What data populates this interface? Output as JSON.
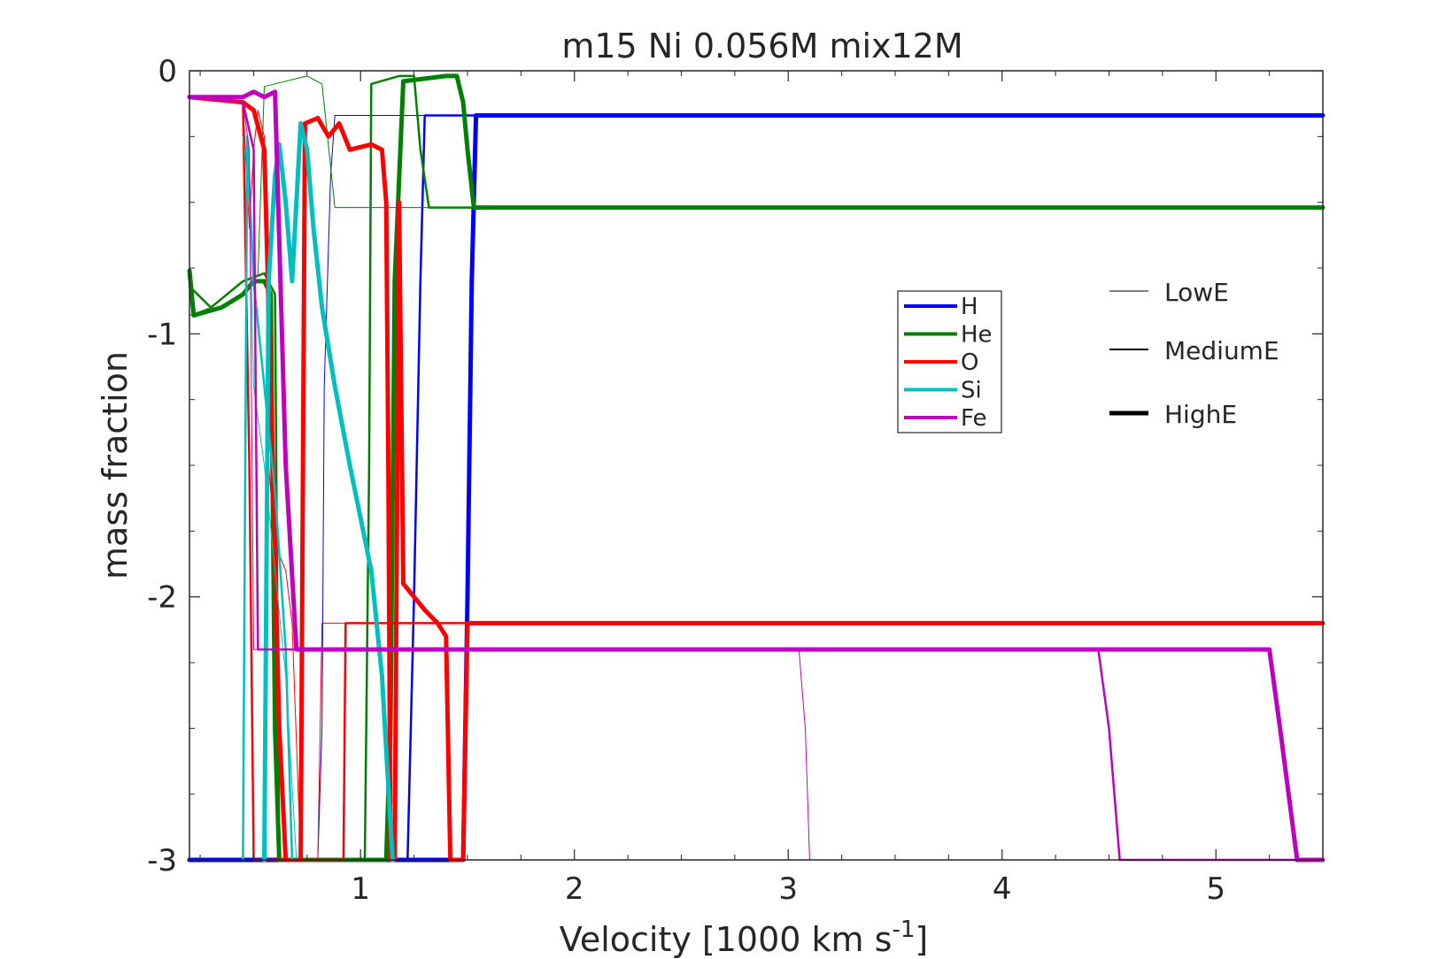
{
  "chart_data": {
    "type": "line",
    "title": "m15 Ni 0.056M mix12M",
    "xlabel_main": "Velocity [1000 km s",
    "xlabel_sup": "-1",
    "xlabel_close": "]",
    "ylabel": "mass fraction",
    "xlim": [
      0.2,
      5.5
    ],
    "ylim": [
      -3,
      0
    ],
    "xticks": [
      1,
      2,
      3,
      4,
      5
    ],
    "yticks": [
      -3,
      -2,
      -1,
      0
    ],
    "legend_elements": [
      {
        "name": "H",
        "color": "#0000ff"
      },
      {
        "name": "He",
        "color": "#008000"
      },
      {
        "name": "O",
        "color": "#ff0000"
      },
      {
        "name": "Si",
        "color": "#00bfbf"
      },
      {
        "name": "Fe",
        "color": "#bf00bf"
      }
    ],
    "legend_energy": [
      {
        "name": "LowE",
        "width": 1
      },
      {
        "name": "MediumE",
        "width": 2
      },
      {
        "name": "HighE",
        "width": 5
      }
    ],
    "series": [
      {
        "element": "H",
        "energy": "LowE",
        "color": "#0000ff",
        "width": 1,
        "points": [
          [
            0.2,
            -3
          ],
          [
            0.8,
            -3
          ],
          [
            0.82,
            -2.5
          ],
          [
            0.83,
            -1.2
          ],
          [
            0.86,
            -0.4
          ],
          [
            0.88,
            -0.17
          ],
          [
            5.5,
            -0.17
          ]
        ]
      },
      {
        "element": "H",
        "energy": "MediumE",
        "color": "#0000ff",
        "width": 2.5,
        "points": [
          [
            0.2,
            -3
          ],
          [
            1.22,
            -3
          ],
          [
            1.25,
            -2.0
          ],
          [
            1.28,
            -0.8
          ],
          [
            1.3,
            -0.17
          ],
          [
            5.5,
            -0.17
          ]
        ]
      },
      {
        "element": "H",
        "energy": "HighE",
        "color": "#0000ff",
        "width": 5,
        "points": [
          [
            0.2,
            -3
          ],
          [
            1.48,
            -3
          ],
          [
            1.5,
            -2.0
          ],
          [
            1.52,
            -0.8
          ],
          [
            1.54,
            -0.17
          ],
          [
            5.5,
            -0.17
          ]
        ]
      },
      {
        "element": "He",
        "energy": "LowE",
        "color": "#008000",
        "width": 1,
        "points": [
          [
            0.2,
            -0.93
          ],
          [
            0.3,
            -0.9
          ],
          [
            0.45,
            -0.8
          ],
          [
            0.52,
            -0.78
          ],
          [
            0.55,
            -0.06
          ],
          [
            0.75,
            -0.02
          ],
          [
            0.82,
            -0.05
          ],
          [
            0.88,
            -0.52
          ],
          [
            1.05,
            -0.52
          ],
          [
            5.5,
            -0.52
          ]
        ]
      },
      {
        "element": "He",
        "energy": "MediumE",
        "color": "#008000",
        "width": 2.5,
        "points": [
          [
            0.2,
            -0.82
          ],
          [
            0.3,
            -0.9
          ],
          [
            0.45,
            -0.8
          ],
          [
            0.55,
            -0.77
          ],
          [
            0.6,
            -0.85
          ],
          [
            0.62,
            -3
          ],
          [
            1.02,
            -3
          ],
          [
            1.04,
            -1.5
          ],
          [
            1.05,
            -0.05
          ],
          [
            1.18,
            -0.02
          ],
          [
            1.25,
            -0.02
          ],
          [
            1.28,
            -0.3
          ],
          [
            1.32,
            -0.52
          ],
          [
            5.5,
            -0.52
          ]
        ]
      },
      {
        "element": "He",
        "energy": "HighE",
        "color": "#008000",
        "width": 5,
        "points": [
          [
            0.2,
            -0.76
          ],
          [
            0.22,
            -0.93
          ],
          [
            0.35,
            -0.9
          ],
          [
            0.45,
            -0.85
          ],
          [
            0.5,
            -0.8
          ],
          [
            0.55,
            -0.8
          ],
          [
            0.58,
            -0.85
          ],
          [
            0.6,
            -2.5
          ],
          [
            0.62,
            -3
          ],
          [
            1.12,
            -3
          ],
          [
            1.14,
            -2.5
          ],
          [
            1.16,
            -0.8
          ],
          [
            1.2,
            -0.04
          ],
          [
            1.4,
            -0.02
          ],
          [
            1.45,
            -0.02
          ],
          [
            1.48,
            -0.12
          ],
          [
            1.5,
            -0.3
          ],
          [
            1.53,
            -0.52
          ],
          [
            5.5,
            -0.52
          ]
        ]
      },
      {
        "element": "O",
        "energy": "LowE",
        "color": "#ff0000",
        "width": 1,
        "points": [
          [
            0.2,
            -0.1
          ],
          [
            0.45,
            -0.12
          ],
          [
            0.48,
            -0.6
          ],
          [
            0.5,
            -0.3
          ],
          [
            0.52,
            -0.15
          ],
          [
            0.55,
            -0.25
          ],
          [
            0.57,
            -1.5
          ],
          [
            0.6,
            -1.8
          ],
          [
            0.65,
            -1.9
          ],
          [
            0.68,
            -2.1
          ],
          [
            0.72,
            -3
          ],
          [
            0.8,
            -3
          ],
          [
            0.82,
            -2.1
          ],
          [
            1.25,
            -2.1
          ],
          [
            5.5,
            -2.1
          ]
        ]
      },
      {
        "element": "O",
        "energy": "MediumE",
        "color": "#ff0000",
        "width": 2.5,
        "points": [
          [
            0.2,
            -0.1
          ],
          [
            0.45,
            -0.12
          ],
          [
            0.48,
            -1.5
          ],
          [
            0.5,
            -3
          ],
          [
            0.92,
            -3
          ],
          [
            0.93,
            -2.1
          ],
          [
            1.28,
            -2.1
          ],
          [
            5.5,
            -2.1
          ]
        ]
      },
      {
        "element": "O",
        "energy": "HighE",
        "color": "#ff0000",
        "width": 5,
        "points": [
          [
            0.2,
            -0.1
          ],
          [
            0.45,
            -0.12
          ],
          [
            0.5,
            -0.15
          ],
          [
            0.55,
            -0.3
          ],
          [
            0.58,
            -1.2
          ],
          [
            0.62,
            -2.5
          ],
          [
            0.65,
            -3
          ],
          [
            0.72,
            -3
          ],
          [
            0.74,
            -0.2
          ],
          [
            0.8,
            -0.18
          ],
          [
            0.85,
            -0.25
          ],
          [
            0.9,
            -0.2
          ],
          [
            0.95,
            -0.3
          ],
          [
            1.05,
            -0.28
          ],
          [
            1.1,
            -0.3
          ],
          [
            1.12,
            -0.5
          ],
          [
            1.13,
            -1.5
          ],
          [
            1.14,
            -3
          ],
          [
            1.16,
            -3
          ],
          [
            1.18,
            -0.5
          ],
          [
            1.2,
            -1.95
          ],
          [
            1.3,
            -2.05
          ],
          [
            1.36,
            -2.1
          ],
          [
            1.4,
            -2.15
          ],
          [
            1.42,
            -3
          ],
          [
            1.48,
            -3
          ],
          [
            1.5,
            -2.1
          ],
          [
            5.5,
            -2.1
          ]
        ]
      },
      {
        "element": "Si",
        "energy": "LowE",
        "color": "#00bfbf",
        "width": 1,
        "points": [
          [
            0.45,
            -0.25
          ],
          [
            0.48,
            -0.5
          ],
          [
            0.5,
            -1.2
          ],
          [
            0.55,
            -1.5
          ],
          [
            0.6,
            -1.9
          ],
          [
            0.65,
            -2.3
          ],
          [
            0.7,
            -3
          ]
        ]
      },
      {
        "element": "Si",
        "energy": "MediumE",
        "color": "#00bfbf",
        "width": 2.5,
        "points": [
          [
            0.45,
            -3
          ],
          [
            0.47,
            -0.25
          ],
          [
            0.5,
            -0.8
          ],
          [
            0.55,
            -1.2
          ],
          [
            0.6,
            -1.6
          ],
          [
            0.65,
            -2.2
          ],
          [
            0.68,
            -3
          ]
        ]
      },
      {
        "element": "Si",
        "energy": "HighE",
        "color": "#00bfbf",
        "width": 5,
        "points": [
          [
            0.55,
            -3
          ],
          [
            0.57,
            -0.8
          ],
          [
            0.6,
            -0.4
          ],
          [
            0.62,
            -0.28
          ],
          [
            0.65,
            -0.5
          ],
          [
            0.68,
            -0.8
          ],
          [
            0.72,
            -0.2
          ],
          [
            0.75,
            -0.3
          ],
          [
            0.78,
            -0.6
          ],
          [
            0.82,
            -0.9
          ],
          [
            0.88,
            -1.2
          ],
          [
            0.95,
            -1.5
          ],
          [
            1.0,
            -1.7
          ],
          [
            1.05,
            -1.9
          ],
          [
            1.1,
            -2.3
          ],
          [
            1.15,
            -3
          ]
        ]
      },
      {
        "element": "Fe",
        "energy": "LowE",
        "color": "#bf00bf",
        "width": 1,
        "points": [
          [
            0.2,
            -0.1
          ],
          [
            0.45,
            -0.12
          ],
          [
            0.48,
            -0.3
          ],
          [
            0.5,
            -2.2
          ],
          [
            3.05,
            -2.2
          ],
          [
            3.08,
            -2.5
          ],
          [
            3.1,
            -3
          ],
          [
            5.5,
            -3
          ]
        ]
      },
      {
        "element": "Fe",
        "energy": "MediumE",
        "color": "#bf00bf",
        "width": 2.5,
        "points": [
          [
            0.2,
            -0.1
          ],
          [
            0.45,
            -0.12
          ],
          [
            0.5,
            -0.3
          ],
          [
            0.52,
            -2.2
          ],
          [
            4.45,
            -2.2
          ],
          [
            4.5,
            -2.5
          ],
          [
            4.55,
            -3
          ],
          [
            5.5,
            -3
          ]
        ]
      },
      {
        "element": "Fe",
        "energy": "HighE",
        "color": "#bf00bf",
        "width": 5,
        "points": [
          [
            0.2,
            -0.1
          ],
          [
            0.45,
            -0.1
          ],
          [
            0.5,
            -0.08
          ],
          [
            0.55,
            -0.1
          ],
          [
            0.6,
            -0.08
          ],
          [
            0.65,
            -1.5
          ],
          [
            0.7,
            -2.2
          ],
          [
            5.25,
            -2.2
          ],
          [
            5.3,
            -2.5
          ],
          [
            5.38,
            -3
          ],
          [
            5.5,
            -3
          ]
        ]
      }
    ]
  }
}
